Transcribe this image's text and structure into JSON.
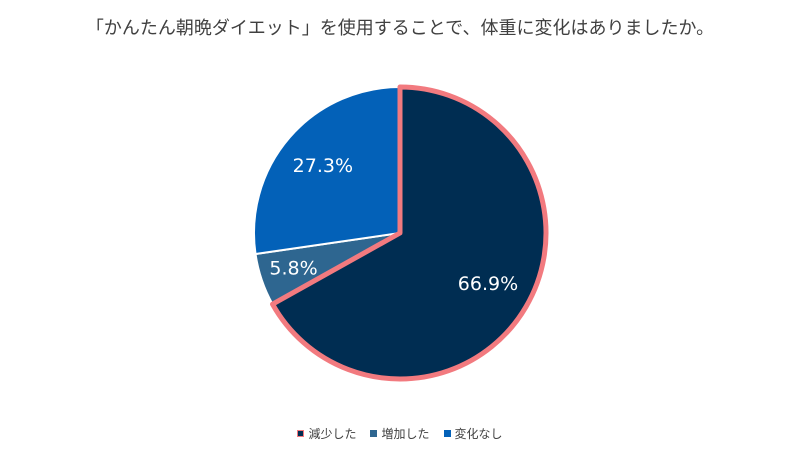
{
  "chart_data": {
    "type": "pie",
    "title": "「かんたん朝晩ダイエット」を使用することで、体重に変化はありましたか。",
    "categories": [
      "減少した",
      "増加した",
      "変化なし"
    ],
    "values": [
      66.9,
      5.8,
      27.3
    ],
    "value_labels": [
      "66.9%",
      "5.8%",
      "27.3%"
    ],
    "colors": [
      "#002d52",
      "#2e6690",
      "#0361b8"
    ],
    "highlight": {
      "category": "減少した",
      "outline_color": "#f27a7f"
    },
    "start_angle": "12 o'clock",
    "direction": "clockwise",
    "legend_position": "bottom"
  }
}
